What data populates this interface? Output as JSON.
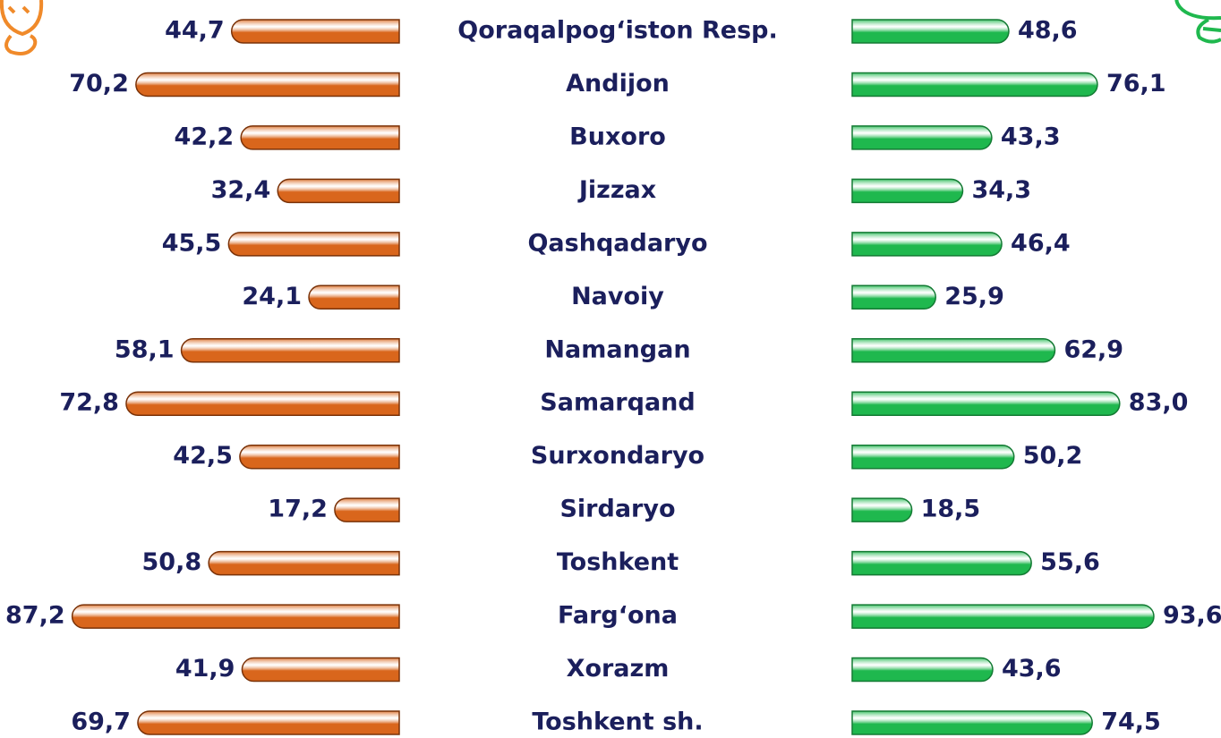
{
  "chart_data": {
    "type": "butterfly",
    "categories": [
      "Qoraqalpog‘iston Resp.",
      "Andijon",
      "Buxoro",
      "Jizzax",
      "Qashqadaryo",
      "Navoiy",
      "Namangan",
      "Samarqand",
      "Surxondaryo",
      "Sirdaryo",
      "Toshkent",
      "Farg‘ona",
      "Xorazm",
      "Toshkent sh."
    ],
    "series": [
      {
        "color": "#d9661c",
        "values": [
          44.7,
          70.2,
          42.2,
          32.4,
          45.5,
          24.1,
          58.1,
          72.8,
          42.5,
          17.2,
          50.8,
          87.2,
          41.9,
          69.7
        ],
        "value_labels": [
          "44,7",
          "70,2",
          "42,2",
          "32,4",
          "45,5",
          "24,1",
          "58,1",
          "72,8",
          "42,5",
          "17,2",
          "50,8",
          "87,2",
          "41,9",
          "69,7"
        ]
      },
      {
        "color": "#1fb84e",
        "values": [
          48.6,
          76.1,
          43.3,
          34.3,
          46.4,
          25.9,
          62.9,
          83.0,
          50.2,
          18.5,
          55.6,
          93.6,
          43.6,
          74.5
        ],
        "value_labels": [
          "48,6",
          "76,1",
          "43,3",
          "34,3",
          "46,4",
          "25,9",
          "62,9",
          "83,0",
          "50,2",
          "18,5",
          "55,6",
          "93,6",
          "43,6",
          "74,5"
        ]
      }
    ]
  }
}
